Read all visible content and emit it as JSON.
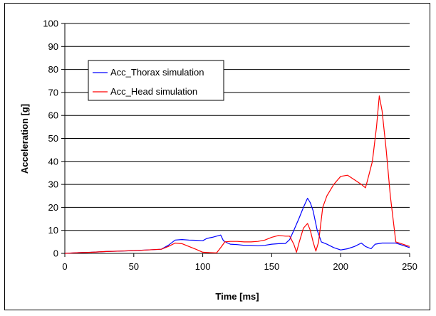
{
  "chart_data": {
    "type": "line",
    "title": "",
    "xlabel": "Time [ms]",
    "ylabel": "Acceleration [g]",
    "xlim": [
      0,
      250
    ],
    "ylim": [
      0,
      100
    ],
    "xticks": [
      0,
      50,
      100,
      150,
      200,
      250
    ],
    "yticks": [
      0,
      10,
      20,
      30,
      40,
      50,
      60,
      70,
      80,
      90,
      100
    ],
    "grid": "horizontal",
    "legend_position": "upper-left",
    "series": [
      {
        "name": "Acc_Thorax simulation",
        "color": "#0000ff",
        "x": [
          0,
          10,
          20,
          30,
          40,
          50,
          60,
          70,
          75,
          80,
          85,
          90,
          95,
          100,
          103,
          107,
          110,
          113,
          115,
          118,
          120,
          125,
          130,
          135,
          140,
          145,
          150,
          155,
          160,
          163,
          166,
          170,
          173,
          176,
          178,
          180,
          183,
          186,
          190,
          195,
          200,
          205,
          210,
          215,
          218,
          222,
          225,
          230,
          235,
          240,
          245,
          250
        ],
        "y": [
          0,
          0.3,
          0.5,
          0.8,
          1,
          1.2,
          1.5,
          1.8,
          3.5,
          5.8,
          6.0,
          5.8,
          5.7,
          5.5,
          6.5,
          7.0,
          7.5,
          8.0,
          5.5,
          4.5,
          4.0,
          3.8,
          3.5,
          3.5,
          3.3,
          3.5,
          4.0,
          4.2,
          4.3,
          6.0,
          10.0,
          15.5,
          20.0,
          24.0,
          22.0,
          18.5,
          10.0,
          5.0,
          4.0,
          2.5,
          1.5,
          2.0,
          3.0,
          4.5,
          3.0,
          2.0,
          4.0,
          4.5,
          4.5,
          4.5,
          3.5,
          2.5
        ]
      },
      {
        "name": "Acc_Head simulation",
        "color": "#ff0000",
        "x": [
          0,
          10,
          20,
          30,
          40,
          50,
          60,
          70,
          75,
          80,
          85,
          90,
          95,
          100,
          105,
          110,
          113,
          116,
          120,
          125,
          130,
          135,
          140,
          145,
          150,
          155,
          160,
          163,
          166,
          168,
          170,
          173,
          176,
          178,
          180,
          182,
          184,
          187,
          190,
          195,
          200,
          205,
          210,
          215,
          218,
          220,
          223,
          226,
          228,
          230,
          233,
          236,
          240,
          245,
          250
        ],
        "y": [
          0,
          0.3,
          0.5,
          0.8,
          1,
          1.2,
          1.5,
          1.8,
          3.0,
          4.5,
          4.2,
          3.0,
          1.8,
          0.5,
          0.3,
          0.2,
          2.5,
          5.0,
          5.2,
          5.2,
          5.0,
          5.0,
          5.2,
          5.8,
          7.0,
          7.8,
          7.5,
          7.5,
          4.0,
          0.5,
          5.0,
          11.0,
          13.0,
          10.0,
          5.0,
          1.0,
          5.0,
          20.0,
          25.0,
          30.0,
          33.5,
          34.0,
          32.0,
          30.0,
          28.5,
          33.0,
          40.0,
          55.0,
          68.5,
          62.0,
          45.0,
          25.0,
          5.0,
          4.0,
          3.0
        ]
      }
    ]
  }
}
